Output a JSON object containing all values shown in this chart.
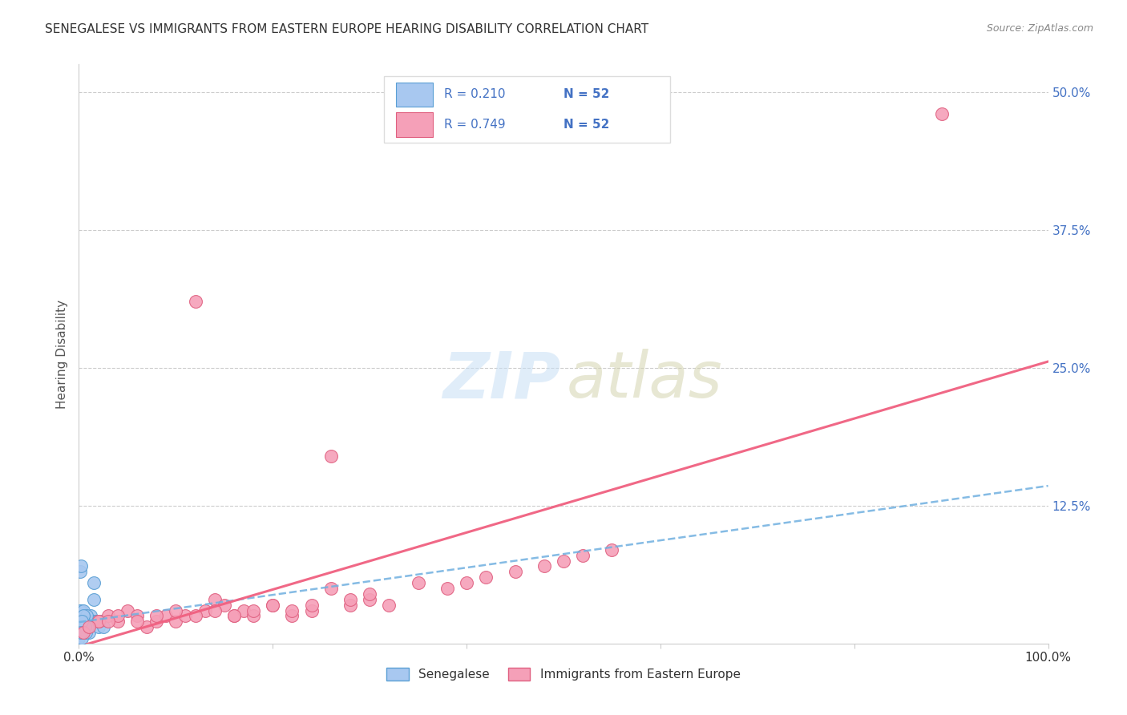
{
  "title": "SENEGALESE VS IMMIGRANTS FROM EASTERN EUROPE HEARING DISABILITY CORRELATION CHART",
  "source": "Source: ZipAtlas.com",
  "ylabel": "Hearing Disability",
  "color_blue": "#a8c8f0",
  "color_pink": "#f5a0b8",
  "line_blue": "#70b0e0",
  "line_pink": "#f06080",
  "xlim": [
    0.0,
    1.0
  ],
  "ylim": [
    0.0,
    0.525
  ],
  "senegalese_x": [
    0.0,
    0.001,
    0.001,
    0.002,
    0.002,
    0.003,
    0.003,
    0.003,
    0.004,
    0.004,
    0.005,
    0.005,
    0.005,
    0.006,
    0.006,
    0.007,
    0.007,
    0.008,
    0.009,
    0.01,
    0.01,
    0.012,
    0.013,
    0.015,
    0.015,
    0.016,
    0.018,
    0.02,
    0.022,
    0.025,
    0.0,
    0.001,
    0.002,
    0.003,
    0.004,
    0.005,
    0.006,
    0.007,
    0.008,
    0.009,
    0.001,
    0.002,
    0.003,
    0.003,
    0.004,
    0.004,
    0.005,
    0.006,
    0.005,
    0.004,
    0.003,
    0.002
  ],
  "senegalese_y": [
    0.01,
    0.01,
    0.02,
    0.015,
    0.025,
    0.01,
    0.02,
    0.03,
    0.015,
    0.02,
    0.02,
    0.025,
    0.015,
    0.02,
    0.01,
    0.02,
    0.015,
    0.02,
    0.015,
    0.02,
    0.01,
    0.025,
    0.02,
    0.055,
    0.04,
    0.02,
    0.02,
    0.015,
    0.02,
    0.015,
    0.005,
    0.03,
    0.01,
    0.005,
    0.01,
    0.03,
    0.02,
    0.01,
    0.025,
    0.015,
    0.065,
    0.07,
    0.015,
    0.02,
    0.015,
    0.01,
    0.02,
    0.015,
    0.025,
    0.01,
    0.02,
    0.01
  ],
  "eastern_europe_x": [
    0.005,
    0.89,
    0.02,
    0.03,
    0.04,
    0.05,
    0.06,
    0.07,
    0.08,
    0.09,
    0.1,
    0.11,
    0.12,
    0.13,
    0.14,
    0.15,
    0.16,
    0.17,
    0.18,
    0.2,
    0.22,
    0.24,
    0.26,
    0.28,
    0.3,
    0.32,
    0.35,
    0.38,
    0.4,
    0.42,
    0.45,
    0.48,
    0.5,
    0.52,
    0.55,
    0.02,
    0.04,
    0.06,
    0.08,
    0.1,
    0.12,
    0.14,
    0.16,
    0.18,
    0.2,
    0.22,
    0.24,
    0.26,
    0.28,
    0.3,
    0.01,
    0.03
  ],
  "eastern_europe_y": [
    0.01,
    0.48,
    0.02,
    0.025,
    0.02,
    0.03,
    0.025,
    0.015,
    0.02,
    0.025,
    0.02,
    0.025,
    0.31,
    0.03,
    0.04,
    0.035,
    0.025,
    0.03,
    0.025,
    0.035,
    0.025,
    0.03,
    0.05,
    0.035,
    0.04,
    0.035,
    0.055,
    0.05,
    0.055,
    0.06,
    0.065,
    0.07,
    0.075,
    0.08,
    0.085,
    0.02,
    0.025,
    0.02,
    0.025,
    0.03,
    0.025,
    0.03,
    0.025,
    0.03,
    0.035,
    0.03,
    0.035,
    0.17,
    0.04,
    0.045,
    0.015,
    0.02
  ]
}
